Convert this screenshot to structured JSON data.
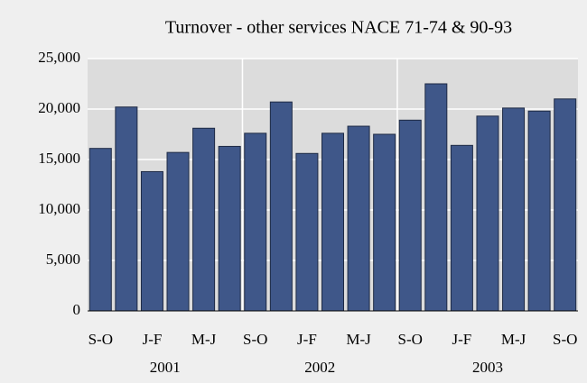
{
  "chart_data": {
    "type": "bar",
    "title": "Turnover - other services NACE 71-74 & 90-93",
    "categories": [
      "S-O",
      null,
      "J-F",
      null,
      "M-J",
      null,
      "S-O",
      null,
      "J-F",
      null,
      "M-J",
      null,
      "S-O",
      null,
      "J-F",
      null,
      "M-J",
      null,
      "S-O"
    ],
    "values": [
      16100,
      20200,
      13800,
      15700,
      18100,
      16300,
      17600,
      20700,
      15600,
      17600,
      18300,
      17500,
      18900,
      22500,
      16400,
      19300,
      20100,
      19800,
      21000
    ],
    "year_groups": [
      {
        "label": "2001",
        "first": 0,
        "last": 5
      },
      {
        "label": "2002",
        "first": 6,
        "last": 11
      },
      {
        "label": "2003",
        "first": 12,
        "last": 18
      }
    ],
    "color": "#3f5789",
    "ylim": [
      0,
      25000
    ],
    "yticks": [
      0,
      {
        "value": 5000,
        "label": "5,000"
      },
      {
        "value": 10000,
        "label": "10,000"
      },
      {
        "value": 15000,
        "label": "15,000"
      },
      {
        "value": 20000,
        "label": "20,000"
      },
      {
        "value": 25000,
        "label": "25,000"
      }
    ],
    "grid": true
  }
}
